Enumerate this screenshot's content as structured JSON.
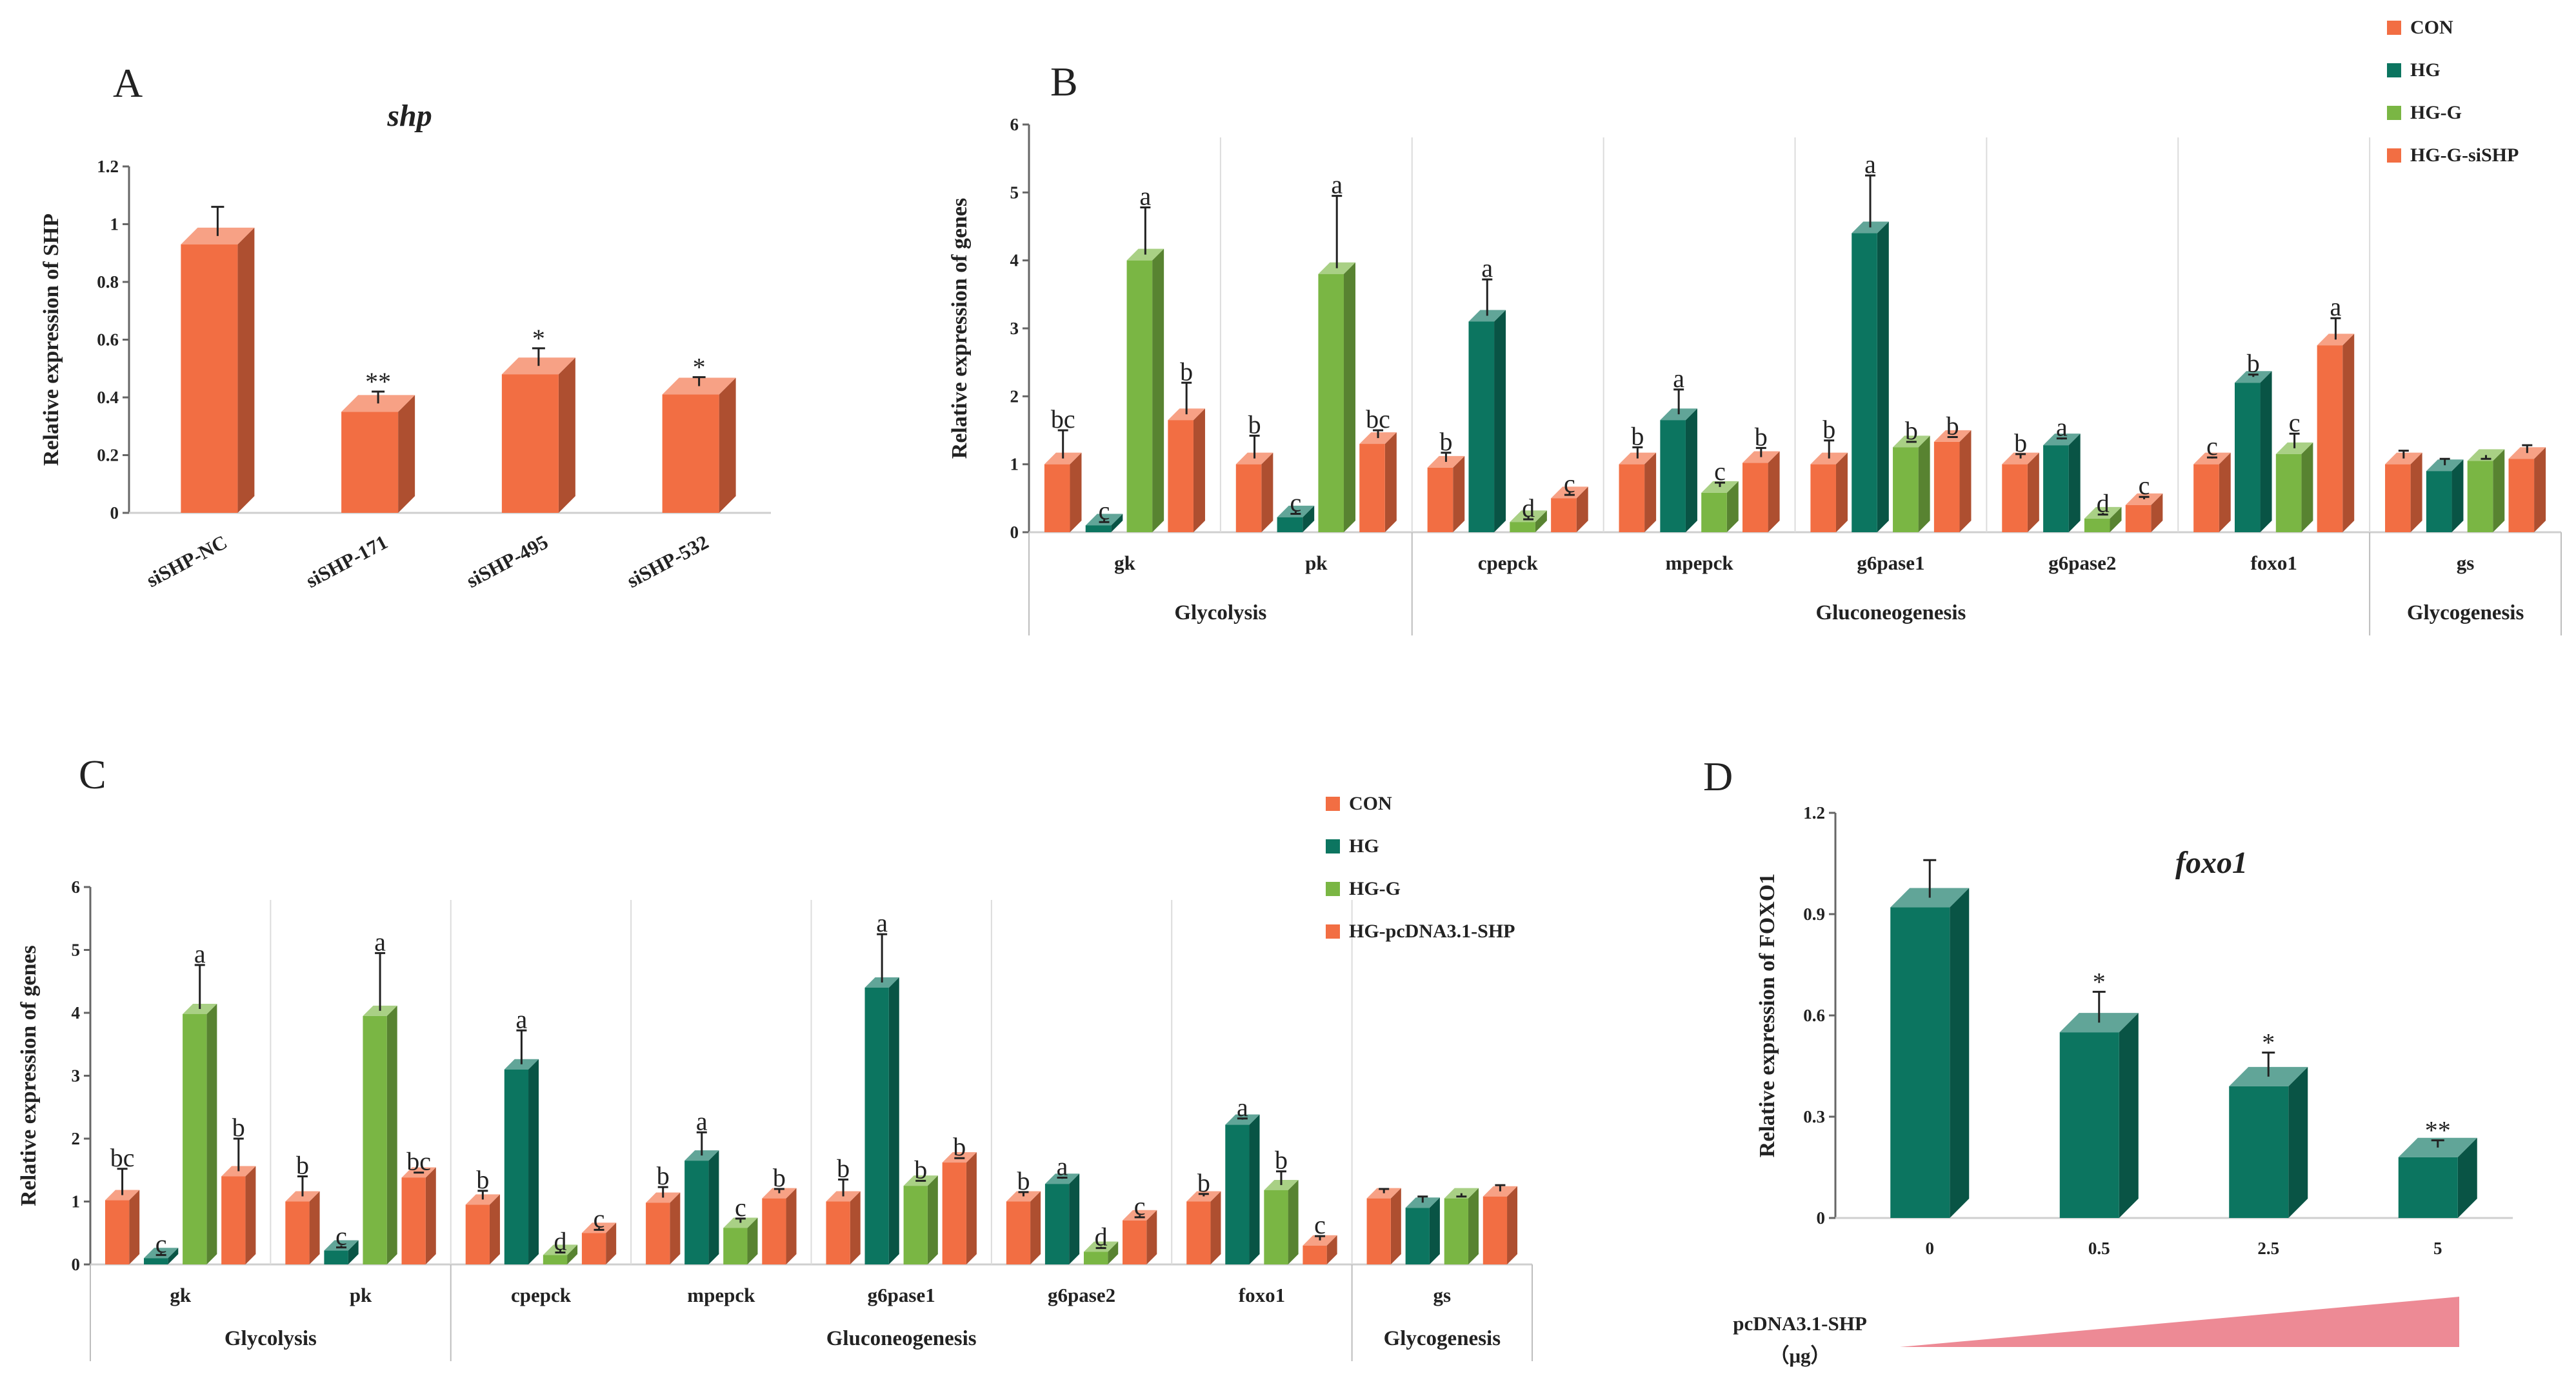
{
  "colors": {
    "orange": "#f26e43",
    "teal": "#0c7560",
    "green": "#7ab644",
    "wedge": "#ed8a95"
  },
  "chart_data": [
    {
      "id": "A",
      "type": "bar",
      "panel_label": "A",
      "title": "shp",
      "ylabel": "Relative expression of SHP",
      "ylim": [
        0,
        1.2
      ],
      "yticks": [
        "0",
        "0.2",
        "0.4",
        "0.6",
        "0.8",
        "1",
        "1.2"
      ],
      "categories": [
        "siSHP-NC",
        "siSHP-171",
        "siSHP-495",
        "siSHP-532"
      ],
      "values": [
        0.93,
        0.35,
        0.48,
        0.41
      ],
      "errors": [
        0.13,
        0.07,
        0.09,
        0.06
      ],
      "labels": [
        "",
        "**",
        "*",
        "*"
      ],
      "grid": false
    },
    {
      "id": "B",
      "type": "bar",
      "panel_label": "B",
      "ylabel": "Relative expression of genes",
      "ylim": [
        0,
        6
      ],
      "yticks": [
        "0",
        "1",
        "2",
        "3",
        "4",
        "5",
        "6"
      ],
      "categories": [
        "gk",
        "pk",
        "cpepck",
        "mpepck",
        "g6pase1",
        "g6pase2",
        "foxo1",
        "gs"
      ],
      "groups": [
        {
          "label": "Glycolysis",
          "span": [
            0,
            1
          ]
        },
        {
          "label": "Gluconeogenesis",
          "span": [
            2,
            6
          ]
        },
        {
          "label": "Glycogenesis",
          "span": [
            7,
            7
          ]
        }
      ],
      "legend": [
        "CON",
        "HG",
        "HG-G",
        "HG-G-siSHP"
      ],
      "series": [
        {
          "name": "CON",
          "values": [
            1.0,
            1.0,
            0.95,
            1.0,
            1.0,
            1.0,
            1.0,
            1.0
          ],
          "errors": [
            0.5,
            0.42,
            0.22,
            0.25,
            0.35,
            0.15,
            0.1,
            0.2
          ],
          "labels": [
            "bc",
            "b",
            "b",
            "b",
            "b",
            "b",
            "c",
            ""
          ]
        },
        {
          "name": "HG",
          "values": [
            0.1,
            0.22,
            3.1,
            1.65,
            4.4,
            1.28,
            2.2,
            0.9
          ],
          "errors": [
            0.05,
            0.05,
            0.62,
            0.45,
            0.85,
            0.1,
            0.12,
            0.18
          ],
          "labels": [
            "c",
            "c",
            "a",
            "a",
            "a",
            "a",
            "b",
            ""
          ]
        },
        {
          "name": "HG-G",
          "values": [
            4.0,
            3.8,
            0.15,
            0.58,
            1.25,
            0.2,
            1.15,
            1.05
          ],
          "errors": [
            0.78,
            1.15,
            0.04,
            0.15,
            0.08,
            0.06,
            0.3,
            0.03
          ],
          "labels": [
            "a",
            "a",
            "d",
            "c",
            "b",
            "d",
            "c",
            ""
          ]
        },
        {
          "name": "HG-G-siSHP",
          "values": [
            1.65,
            1.3,
            0.5,
            1.02,
            1.33,
            0.4,
            2.75,
            1.08
          ],
          "errors": [
            0.55,
            0.2,
            0.05,
            0.22,
            0.07,
            0.12,
            0.4,
            0.2
          ],
          "labels": [
            "b",
            "bc",
            "c",
            "b",
            "b",
            "c",
            "a",
            ""
          ]
        }
      ]
    },
    {
      "id": "C",
      "type": "bar",
      "panel_label": "C",
      "ylabel": "Relative expression of genes",
      "ylim": [
        0,
        6
      ],
      "yticks": [
        "0",
        "1",
        "2",
        "3",
        "4",
        "5",
        "6"
      ],
      "categories": [
        "gk",
        "pk",
        "cpepck",
        "mpepck",
        "g6pase1",
        "g6pase2",
        "foxo1",
        "gs"
      ],
      "groups": [
        {
          "label": "Glycolysis",
          "span": [
            0,
            1
          ]
        },
        {
          "label": "Gluconeogenesis",
          "span": [
            2,
            6
          ]
        },
        {
          "label": "Glycogenesis",
          "span": [
            7,
            7
          ]
        }
      ],
      "legend": [
        "CON",
        "HG",
        "HG-G",
        "HG-pcDNA3.1-SHP"
      ],
      "series": [
        {
          "name": "CON",
          "values": [
            1.02,
            1.0,
            0.95,
            0.98,
            1.0,
            1.0,
            1.0,
            1.05
          ],
          "errors": [
            0.5,
            0.4,
            0.22,
            0.25,
            0.35,
            0.15,
            0.12,
            0.15
          ],
          "labels": [
            "bc",
            "b",
            "b",
            "b",
            "b",
            "b",
            "b",
            ""
          ]
        },
        {
          "name": "HG",
          "values": [
            0.1,
            0.22,
            3.1,
            1.65,
            4.4,
            1.28,
            2.22,
            0.9
          ],
          "errors": [
            0.05,
            0.05,
            0.62,
            0.45,
            0.85,
            0.1,
            0.1,
            0.18
          ],
          "labels": [
            "c",
            "c",
            "a",
            "a",
            "a",
            "a",
            "a",
            ""
          ]
        },
        {
          "name": "HG-G",
          "values": [
            3.98,
            3.95,
            0.15,
            0.58,
            1.25,
            0.2,
            1.18,
            1.05
          ],
          "errors": [
            0.78,
            1.0,
            0.04,
            0.15,
            0.08,
            0.06,
            0.3,
            0.03
          ],
          "labels": [
            "a",
            "a",
            "d",
            "c",
            "b",
            "d",
            "b",
            ""
          ]
        },
        {
          "name": "HG-pcDNA3.1-SHP",
          "values": [
            1.4,
            1.38,
            0.5,
            1.05,
            1.62,
            0.7,
            0.3,
            1.08
          ],
          "errors": [
            0.6,
            0.08,
            0.05,
            0.15,
            0.07,
            0.05,
            0.15,
            0.18
          ],
          "labels": [
            "b",
            "bc",
            "c",
            "b",
            "b",
            "c",
            "c",
            ""
          ]
        }
      ]
    },
    {
      "id": "D",
      "type": "bar",
      "panel_label": "D",
      "title": "foxo1",
      "ylabel": "Relative expression of FOXO1",
      "ylim": [
        0,
        1.2
      ],
      "yticks": [
        "0",
        "0.3",
        "0.6",
        "0.9",
        "1.2"
      ],
      "categories": [
        "0",
        "0.5",
        "2.5",
        "5"
      ],
      "values": [
        0.92,
        0.55,
        0.39,
        0.18
      ],
      "errors": [
        0.14,
        0.12,
        0.1,
        0.05
      ],
      "labels": [
        "",
        "*",
        "*",
        "**"
      ],
      "xlabel_line1": "pcDNA3.1-SHP",
      "xlabel_line2": "（μg）",
      "grid": false
    }
  ]
}
